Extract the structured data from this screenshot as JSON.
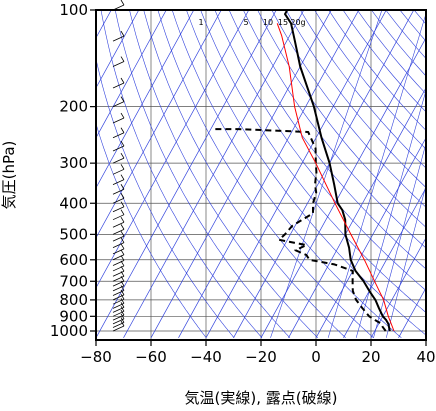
{
  "chart_data": {
    "type": "line",
    "xlabel": "気温(実線), 露点(破線)",
    "ylabel": "気圧(hPa)",
    "x_ticks": [
      -80,
      -60,
      -40,
      -20,
      0,
      20,
      40
    ],
    "y_ticks": [
      100,
      200,
      300,
      400,
      500,
      600,
      700,
      800,
      900,
      1000
    ],
    "xlim": [
      -80,
      40
    ],
    "ylim": [
      1050,
      100
    ],
    "y_scale": "log",
    "mixing_ratio_labels": [
      "1",
      "5",
      "10",
      "15",
      "20g"
    ],
    "series": [
      {
        "style": "solid",
        "color": "#000000",
        "points": [
          {
            "p": 1000,
            "t": 25.5
          },
          {
            "p": 975,
            "t": 24.5
          },
          {
            "p": 950,
            "t": 23.5
          },
          {
            "p": 925,
            "t": 22
          },
          {
            "p": 900,
            "t": 20
          },
          {
            "p": 850,
            "t": 17
          },
          {
            "p": 800,
            "t": 14
          },
          {
            "p": 750,
            "t": 10
          },
          {
            "p": 700,
            "t": 6
          },
          {
            "p": 650,
            "t": 1
          },
          {
            "p": 600,
            "t": -3
          },
          {
            "p": 550,
            "t": -6
          },
          {
            "p": 500,
            "t": -10
          },
          {
            "p": 450,
            "t": -13
          },
          {
            "p": 420,
            "t": -16
          },
          {
            "p": 400,
            "t": -19
          },
          {
            "p": 350,
            "t": -24
          },
          {
            "p": 300,
            "t": -30
          },
          {
            "p": 250,
            "t": -38
          },
          {
            "p": 200,
            "t": -47
          },
          {
            "p": 150,
            "t": -60
          },
          {
            "p": 125,
            "t": -67
          },
          {
            "p": 110,
            "t": -72
          },
          {
            "p": 103,
            "t": -76
          },
          {
            "p": 100,
            "t": -76
          }
        ]
      },
      {
        "style": "dashed",
        "color": "#000000",
        "points": [
          {
            "p": 1000,
            "t": 24
          },
          {
            "p": 970,
            "t": 22
          },
          {
            "p": 950,
            "t": 21
          },
          {
            "p": 925,
            "t": 18
          },
          {
            "p": 900,
            "t": 15
          },
          {
            "p": 850,
            "t": 11
          },
          {
            "p": 800,
            "t": 7
          },
          {
            "p": 750,
            "t": 4
          },
          {
            "p": 700,
            "t": 2
          },
          {
            "p": 650,
            "t": 0
          },
          {
            "p": 620,
            "t": -8
          },
          {
            "p": 600,
            "t": -18
          },
          {
            "p": 580,
            "t": -20
          },
          {
            "p": 560,
            "t": -25
          },
          {
            "p": 540,
            "t": -22
          },
          {
            "p": 520,
            "t": -33
          },
          {
            "p": 500,
            "t": -32
          },
          {
            "p": 470,
            "t": -31
          },
          {
            "p": 430,
            "t": -26
          },
          {
            "p": 400,
            "t": -28
          },
          {
            "p": 370,
            "t": -29
          },
          {
            "p": 350,
            "t": -31
          },
          {
            "p": 320,
            "t": -33
          },
          {
            "p": 300,
            "t": -35
          },
          {
            "p": 270,
            "t": -38
          },
          {
            "p": 240,
            "t": -44
          },
          {
            "p": 235,
            "t": -70
          },
          {
            "p": 235,
            "t": -79
          }
        ]
      },
      {
        "style": "solid",
        "color": "#ff0000",
        "points": [
          {
            "p": 1000,
            "t": 27
          },
          {
            "p": 900,
            "t": 22
          },
          {
            "p": 800,
            "t": 17
          },
          {
            "p": 700,
            "t": 10
          },
          {
            "p": 600,
            "t": 2
          },
          {
            "p": 500,
            "t": -8
          },
          {
            "p": 400,
            "t": -20
          },
          {
            "p": 300,
            "t": -35
          },
          {
            "p": 250,
            "t": -45
          },
          {
            "p": 200,
            "t": -54
          },
          {
            "p": 150,
            "t": -64
          },
          {
            "p": 120,
            "t": -73
          },
          {
            "p": 110,
            "t": -77
          }
        ]
      }
    ],
    "wind_barbs": [
      1000,
      975,
      950,
      925,
      900,
      875,
      850,
      825,
      800,
      775,
      750,
      725,
      700,
      675,
      650,
      625,
      600,
      575,
      550,
      525,
      500,
      475,
      450,
      425,
      400,
      375,
      350,
      325,
      300,
      275,
      250,
      225,
      200,
      175,
      150,
      125,
      100
    ]
  }
}
